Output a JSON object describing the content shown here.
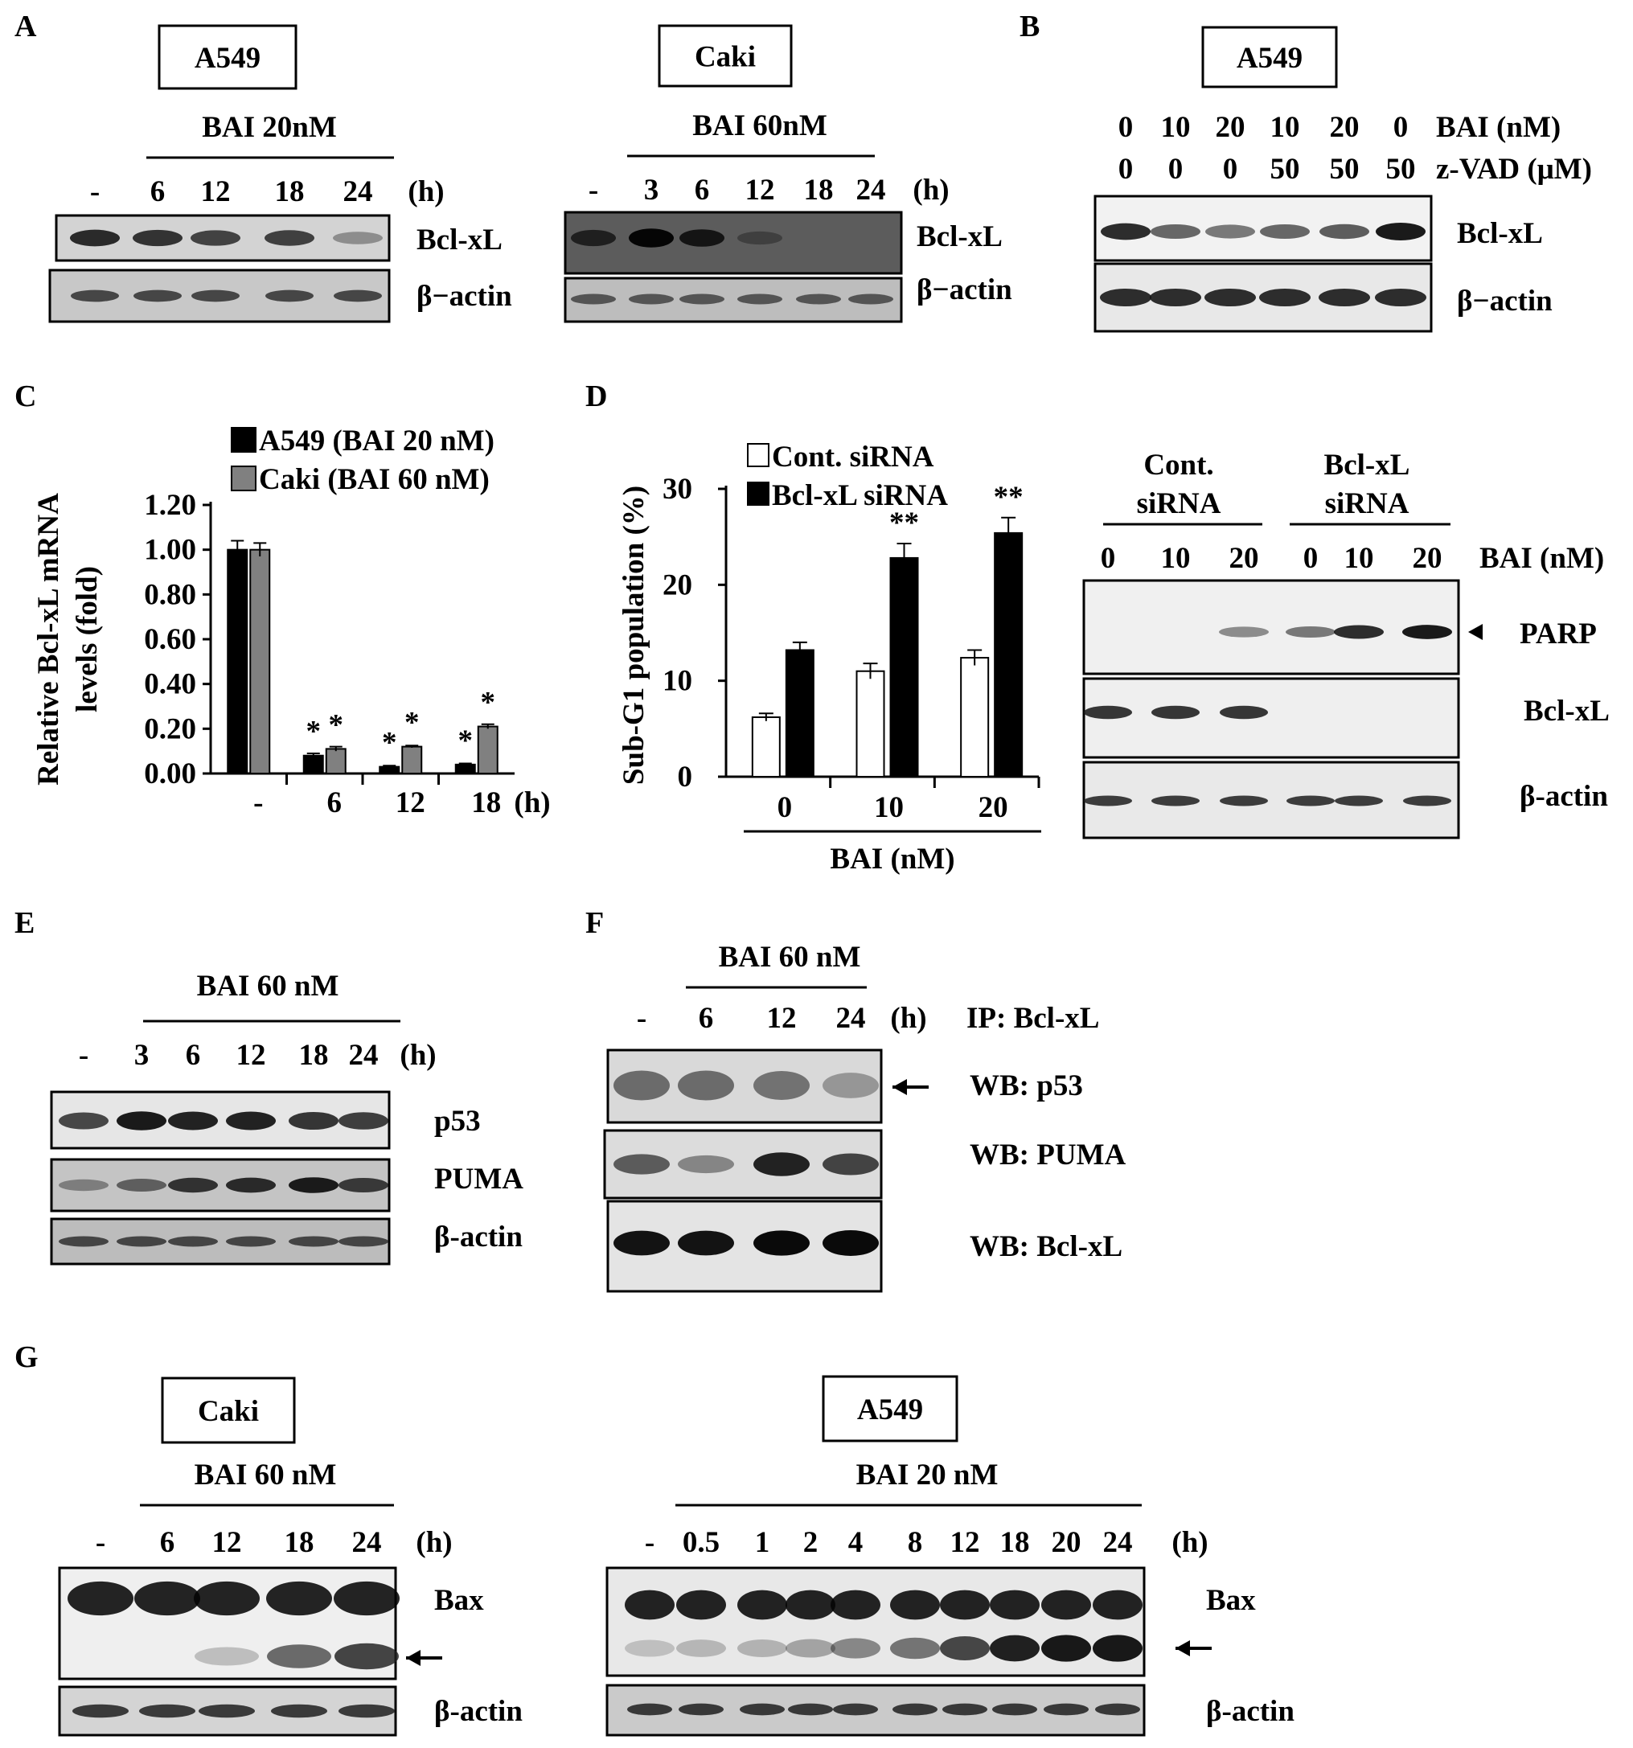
{
  "panels": {
    "A": {
      "letter": "A",
      "left": {
        "cell_line": "A549",
        "treatment": "BAI 20nM",
        "lanes": [
          "-",
          "6",
          "12",
          "18",
          "24"
        ],
        "unit": "(h)",
        "rows": [
          "Bcl-xL",
          "β−actin"
        ],
        "bcl_intensity": [
          0.85,
          0.8,
          0.7,
          0.72,
          0.25
        ]
      },
      "right": {
        "cell_line": "Caki",
        "treatment": "BAI 60nM",
        "lanes": [
          "-",
          "3",
          "6",
          "12",
          "18",
          "24"
        ],
        "unit": "(h)",
        "rows": [
          "Bcl-xL",
          "β−actin"
        ],
        "bcl_intensity": [
          0.6,
          0.95,
          0.75,
          0.2,
          0.0,
          0.0
        ]
      }
    },
    "B": {
      "letter": "B",
      "cell_line": "A549",
      "bai_row": [
        "0",
        "10",
        "20",
        "10",
        "20",
        "0"
      ],
      "bai_label": "BAI (nM)",
      "zvad_row": [
        "0",
        "0",
        "0",
        "50",
        "50",
        "50"
      ],
      "zvad_label": "z-VAD (μM)",
      "rows": [
        "Bcl-xL",
        "β−actin"
      ],
      "bcl_intensity": [
        0.85,
        0.55,
        0.45,
        0.55,
        0.6,
        1.0
      ]
    },
    "C": {
      "letter": "C",
      "ylabel_line1": "Relative  Bcl-xL  mRNA",
      "ylabel_line2": "levels (fold)",
      "unit": "(h)",
      "significance": "*"
    },
    "D": {
      "letter": "D",
      "ylabel": "Sub-G1  population   (%)",
      "xlabel": "BAI (nM)",
      "significance": "**",
      "blot": {
        "group1": [
          "Cont.",
          "siRNA"
        ],
        "group2": [
          "Bcl-xL",
          "siRNA"
        ],
        "lanes": [
          "0",
          "10",
          "20",
          "0",
          "10",
          "20"
        ],
        "unit": "BAI (nM)",
        "rows": [
          "PARP",
          "Bcl-xL",
          "β-actin"
        ],
        "parp_intensity": [
          0.0,
          0.0,
          0.35,
          0.45,
          0.85,
          0.95
        ],
        "bcl_intensity": [
          0.8,
          0.8,
          0.8,
          0.0,
          0.0,
          0.0
        ]
      }
    },
    "E": {
      "letter": "E",
      "treatment": "BAI 60 nM",
      "lanes": [
        "-",
        "3",
        "6",
        "12",
        "18",
        "24"
      ],
      "unit": "(h)",
      "rows": [
        "p53",
        "PUMA",
        "β-actin"
      ],
      "p53_intensity": [
        0.7,
        0.95,
        0.9,
        0.9,
        0.8,
        0.75
      ],
      "puma_intensity": [
        0.3,
        0.5,
        0.8,
        0.85,
        0.95,
        0.75
      ]
    },
    "F": {
      "letter": "F",
      "treatment": "BAI 60 nM",
      "lanes": [
        "-",
        "6",
        "12",
        "24"
      ],
      "unit": "(h)",
      "ip_label": "IP:  Bcl-xL",
      "rows": [
        "WB:  p53",
        "WB:  PUMA",
        "WB:  Bcl-xL"
      ],
      "p53_intensity": [
        0.6,
        0.6,
        0.55,
        0.3
      ],
      "puma_intensity": [
        0.6,
        0.35,
        0.95,
        0.75
      ],
      "bcl_intensity": [
        0.9,
        0.9,
        0.95,
        1.0
      ]
    },
    "G": {
      "letter": "G",
      "left": {
        "cell_line": "Caki",
        "treatment": "BAI 60 nM",
        "lanes": [
          "-",
          "6",
          "12",
          "18",
          "24"
        ],
        "unit": "(h)",
        "rows": [
          "Bax",
          "β-actin"
        ],
        "cleaved_intensity": [
          0.0,
          0.0,
          0.1,
          0.55,
          0.75
        ]
      },
      "right": {
        "cell_line": "A549",
        "treatment": "BAI 20 nM",
        "lanes": [
          "-",
          "0.5",
          "1",
          "2",
          "4",
          "8",
          "12",
          "18",
          "20",
          "24"
        ],
        "unit": "(h)",
        "rows": [
          "Bax",
          "β-actin"
        ],
        "cleaved_intensity": [
          0.05,
          0.1,
          0.12,
          0.2,
          0.35,
          0.45,
          0.7,
          0.9,
          0.95,
          0.95
        ]
      }
    }
  },
  "chart_data": [
    {
      "type": "bar",
      "panel": "C",
      "categories": [
        "-",
        "6",
        "12",
        "18"
      ],
      "series": [
        {
          "name": "A549 (BAI 20 nM)",
          "values": [
            1.0,
            0.08,
            0.03,
            0.04
          ],
          "errors": [
            0.04,
            0.01,
            0.005,
            0.005
          ],
          "color": "#000000"
        },
        {
          "name": "Caki (BAI 60 nM)",
          "values": [
            1.0,
            0.11,
            0.12,
            0.21
          ],
          "errors": [
            0.03,
            0.01,
            0.005,
            0.01
          ],
          "color": "#808080"
        }
      ],
      "yticks": [
        "0.00",
        "0.20",
        "0.40",
        "0.60",
        "0.80",
        "1.00",
        "1.20"
      ],
      "ylim": [
        0,
        1.2
      ],
      "xlabel": "(h)",
      "ylabel": "Relative Bcl-xL mRNA levels (fold)",
      "legend": "top"
    },
    {
      "type": "bar",
      "panel": "D",
      "categories": [
        "0",
        "10",
        "20"
      ],
      "series": [
        {
          "name": "Cont.  siRNA",
          "values": [
            6.2,
            11.0,
            12.4
          ],
          "errors": [
            0.4,
            0.8,
            0.8
          ],
          "color": "#ffffff"
        },
        {
          "name": "Bcl-xL  siRNA",
          "values": [
            13.2,
            22.8,
            25.4
          ],
          "errors": [
            0.8,
            1.5,
            1.6
          ],
          "color": "#000000"
        }
      ],
      "yticks": [
        "0",
        "10",
        "20",
        "30"
      ],
      "ylim": [
        0,
        30
      ],
      "xlabel": "BAI (nM)",
      "ylabel": "Sub-G1 population (%)",
      "legend": "top-left"
    }
  ]
}
